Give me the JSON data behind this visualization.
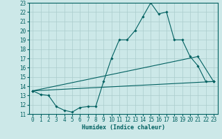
{
  "xlabel": "Humidex (Indice chaleur)",
  "bg_color": "#cce8e8",
  "line_color": "#006060",
  "grid_color": "#aacccc",
  "ylim": [
    11,
    23
  ],
  "xlim": [
    -0.5,
    23.5
  ],
  "yticks": [
    11,
    12,
    13,
    14,
    15,
    16,
    17,
    18,
    19,
    20,
    21,
    22,
    23
  ],
  "xticks": [
    0,
    1,
    2,
    3,
    4,
    5,
    6,
    7,
    8,
    9,
    10,
    11,
    12,
    13,
    14,
    15,
    16,
    17,
    18,
    19,
    20,
    21,
    22,
    23
  ],
  "curve1_x": [
    0,
    1,
    2,
    3,
    4,
    5,
    6,
    7,
    8,
    9,
    10,
    11,
    12,
    13,
    14,
    15,
    16,
    17,
    18,
    19,
    20,
    21,
    22,
    23
  ],
  "curve1_y": [
    13.5,
    13.1,
    13.0,
    11.8,
    11.4,
    11.2,
    11.7,
    11.8,
    11.8,
    14.5,
    17.0,
    19.0,
    19.0,
    20.0,
    21.5,
    23.0,
    21.8,
    22.0,
    19.0,
    19.0,
    17.2,
    16.2,
    14.5,
    14.5
  ],
  "curve2_x": [
    0,
    23
  ],
  "curve2_y": [
    13.5,
    14.5
  ],
  "curve3_x": [
    0,
    21,
    23
  ],
  "curve3_y": [
    13.5,
    17.2,
    14.5
  ]
}
